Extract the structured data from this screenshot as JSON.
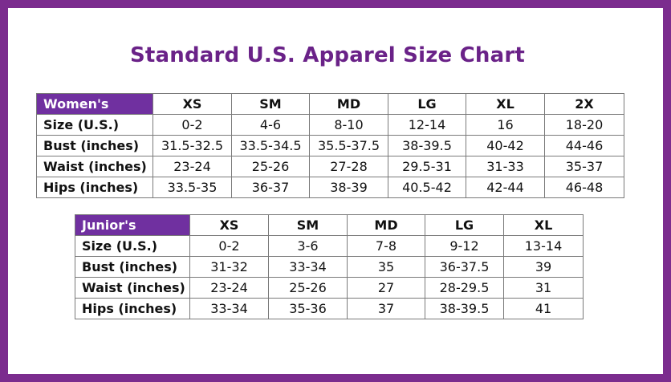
{
  "title": "Standard U.S. Apparel Size Chart",
  "colors": {
    "frame": "#7b2c8e",
    "header_fill": "#7030a0",
    "title": "#6a2288"
  },
  "womens": {
    "header": "Women's",
    "sizes": [
      "XS",
      "SM",
      "MD",
      "LG",
      "XL",
      "2X"
    ],
    "rows": [
      {
        "label": "Size (U.S.)",
        "values": [
          "0-2",
          "4-6",
          "8-10",
          "12-14",
          "16",
          "18-20"
        ]
      },
      {
        "label": "Bust (inches)",
        "values": [
          "31.5-32.5",
          "33.5-34.5",
          "35.5-37.5",
          "38-39.5",
          "40-42",
          "44-46"
        ]
      },
      {
        "label": "Waist (inches)",
        "values": [
          "23-24",
          "25-26",
          "27-28",
          "29.5-31",
          "31-33",
          "35-37"
        ]
      },
      {
        "label": "Hips (inches)",
        "values": [
          "33.5-35",
          "36-37",
          "38-39",
          "40.5-42",
          "42-44",
          "46-48"
        ]
      }
    ]
  },
  "juniors": {
    "header": "Junior's",
    "sizes": [
      "XS",
      "SM",
      "MD",
      "LG",
      "XL"
    ],
    "rows": [
      {
        "label": "Size (U.S.)",
        "values": [
          "0-2",
          "3-6",
          "7-8",
          "9-12",
          "13-14"
        ]
      },
      {
        "label": "Bust (inches)",
        "values": [
          "31-32",
          "33-34",
          "35",
          "36-37.5",
          "39"
        ]
      },
      {
        "label": "Waist (inches)",
        "values": [
          "23-24",
          "25-26",
          "27",
          "28-29.5",
          "31"
        ]
      },
      {
        "label": "Hips (inches)",
        "values": [
          "33-34",
          "35-36",
          "37",
          "38-39.5",
          "41"
        ]
      }
    ]
  }
}
